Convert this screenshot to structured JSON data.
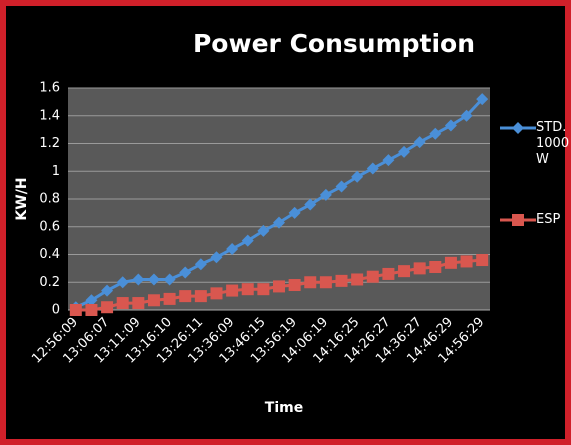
{
  "chart_data": {
    "type": "line",
    "title": "Power Consumption",
    "x_label": "Time",
    "y_label": "KW/H",
    "categories": [
      "12:56:09",
      null,
      "13:06:07",
      null,
      "13:11:09",
      null,
      "13:16:10",
      null,
      "13:26:11",
      null,
      "13:36:09",
      null,
      "13:46:15",
      null,
      "13:56:19",
      null,
      "14:06:19",
      null,
      "14:16:25",
      null,
      "14:26:27",
      null,
      "14:36:27",
      null,
      "14:46:29",
      null,
      "14:56:29"
    ],
    "series": [
      {
        "name": "STD. 1000 W",
        "color": "#4a8fd8",
        "marker": "diamond",
        "values": [
          0.02,
          0.07,
          0.14,
          0.2,
          0.22,
          0.22,
          0.22,
          0.27,
          0.33,
          0.38,
          0.44,
          0.5,
          0.57,
          0.63,
          0.7,
          0.76,
          0.83,
          0.89,
          0.96,
          1.02,
          1.08,
          1.14,
          1.21,
          1.27,
          1.33,
          1.4,
          1.52
        ]
      },
      {
        "name": "ESP",
        "color": "#d9574f",
        "marker": "square",
        "values": [
          0,
          0,
          0.02,
          0.05,
          0.05,
          0.07,
          0.08,
          0.1,
          0.1,
          0.12,
          0.14,
          0.15,
          0.15,
          0.17,
          0.18,
          0.2,
          0.2,
          0.21,
          0.22,
          0.24,
          0.26,
          0.28,
          0.3,
          0.31,
          0.34,
          0.35,
          0.36
        ]
      }
    ],
    "ylim": [
      0,
      1.6
    ],
    "yticks": [
      0,
      0.2,
      0.4,
      0.6,
      0.8,
      1,
      1.2,
      1.4,
      1.6
    ],
    "grid": true
  }
}
